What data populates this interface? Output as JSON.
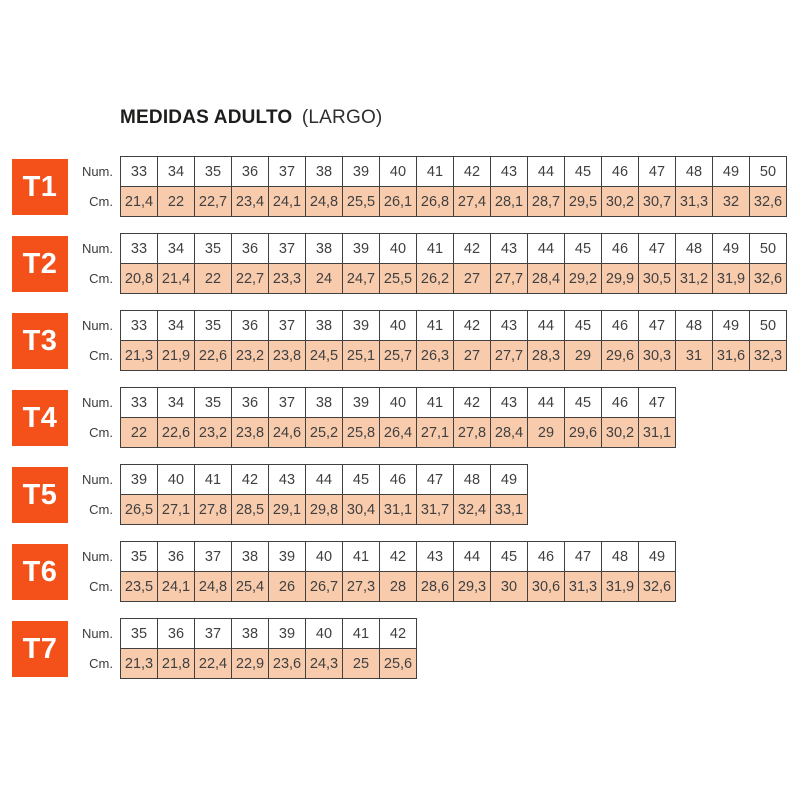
{
  "page": {
    "title_bold": "MEDIDAS ADULTO",
    "title_regular": "(LARGO)"
  },
  "row_labels": {
    "num": "Num.",
    "cm": "Cm."
  },
  "colors": {
    "accent": "#F4501A",
    "cm_cell_fill": "#F8CBAD",
    "grid_border": "#404040",
    "cell_text": "#404040"
  },
  "tables": [
    {
      "label": "T1",
      "num": [
        "33",
        "34",
        "35",
        "36",
        "37",
        "38",
        "39",
        "40",
        "41",
        "42",
        "43",
        "44",
        "45",
        "46",
        "47",
        "48",
        "49",
        "50"
      ],
      "cm": [
        "21,4",
        "22",
        "22,7",
        "23,4",
        "24,1",
        "24,8",
        "25,5",
        "26,1",
        "26,8",
        "27,4",
        "28,1",
        "28,7",
        "29,5",
        "30,2",
        "30,7",
        "31,3",
        "32",
        "32,6"
      ]
    },
    {
      "label": "T2",
      "num": [
        "33",
        "34",
        "35",
        "36",
        "37",
        "38",
        "39",
        "40",
        "41",
        "42",
        "43",
        "44",
        "45",
        "46",
        "47",
        "48",
        "49",
        "50"
      ],
      "cm": [
        "20,8",
        "21,4",
        "22",
        "22,7",
        "23,3",
        "24",
        "24,7",
        "25,5",
        "26,2",
        "27",
        "27,7",
        "28,4",
        "29,2",
        "29,9",
        "30,5",
        "31,2",
        "31,9",
        "32,6"
      ]
    },
    {
      "label": "T3",
      "num": [
        "33",
        "34",
        "35",
        "36",
        "37",
        "38",
        "39",
        "40",
        "41",
        "42",
        "43",
        "44",
        "45",
        "46",
        "47",
        "48",
        "49",
        "50"
      ],
      "cm": [
        "21,3",
        "21,9",
        "22,6",
        "23,2",
        "23,8",
        "24,5",
        "25,1",
        "25,7",
        "26,3",
        "27",
        "27,7",
        "28,3",
        "29",
        "29,6",
        "30,3",
        "31",
        "31,6",
        "32,3"
      ]
    },
    {
      "label": "T4",
      "num": [
        "33",
        "34",
        "35",
        "36",
        "37",
        "38",
        "39",
        "40",
        "41",
        "42",
        "43",
        "44",
        "45",
        "46",
        "47"
      ],
      "cm": [
        "22",
        "22,6",
        "23,2",
        "23,8",
        "24,6",
        "25,2",
        "25,8",
        "26,4",
        "27,1",
        "27,8",
        "28,4",
        "29",
        "29,6",
        "30,2",
        "31,1"
      ]
    },
    {
      "label": "T5",
      "num": [
        "39",
        "40",
        "41",
        "42",
        "43",
        "44",
        "45",
        "46",
        "47",
        "48",
        "49"
      ],
      "cm": [
        "26,5",
        "27,1",
        "27,8",
        "28,5",
        "29,1",
        "29,8",
        "30,4",
        "31,1",
        "31,7",
        "32,4",
        "33,1"
      ]
    },
    {
      "label": "T6",
      "num": [
        "35",
        "36",
        "37",
        "38",
        "39",
        "40",
        "41",
        "42",
        "43",
        "44",
        "45",
        "46",
        "47",
        "48",
        "49"
      ],
      "cm": [
        "23,5",
        "24,1",
        "24,8",
        "25,4",
        "26",
        "26,7",
        "27,3",
        "28",
        "28,6",
        "29,3",
        "30",
        "30,6",
        "31,3",
        "31,9",
        "32,6"
      ]
    },
    {
      "label": "T7",
      "num": [
        "35",
        "36",
        "37",
        "38",
        "39",
        "40",
        "41",
        "42"
      ],
      "cm": [
        "21,3",
        "21,8",
        "22,4",
        "22,9",
        "23,6",
        "24,3",
        "25",
        "25,6"
      ]
    }
  ]
}
